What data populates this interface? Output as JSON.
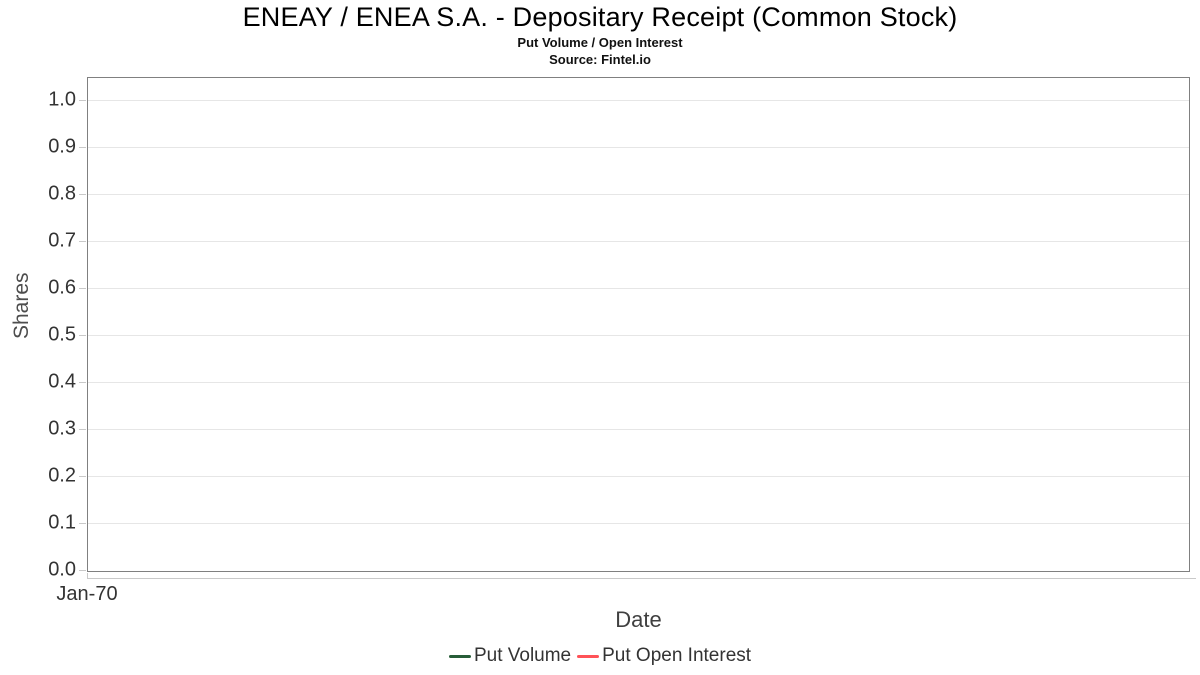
{
  "chart": {
    "title": "ENEAY / ENEA S.A. - Depositary Receipt (Common Stock)",
    "subtitle": "Put Volume / Open Interest",
    "source": "Source: Fintel.io",
    "ylabel": "Shares",
    "xlabel": "Date",
    "y_ticks": [
      "1.0",
      "0.9",
      "0.8",
      "0.7",
      "0.6",
      "0.5",
      "0.4",
      "0.3",
      "0.2",
      "0.1",
      "0.0"
    ],
    "x_ticks": [
      "Jan-70"
    ],
    "legend": [
      {
        "label": "Put Volume",
        "color": "#275d38"
      },
      {
        "label": "Put Open Interest",
        "color": "#ff5257"
      }
    ],
    "colors": {
      "plot_border": "#808080",
      "gridline": "#e6e6e6",
      "tick": "#c9c9c9",
      "title_text": "#000000",
      "tick_label_text": "#333333",
      "axis_title_text": "#404040"
    }
  },
  "chart_data": {
    "type": "line",
    "title": "ENEAY / ENEA S.A. - Depositary Receipt (Common Stock)",
    "subtitle": "Put Volume / Open Interest",
    "source": "Source: Fintel.io",
    "xlabel": "Date",
    "ylabel": "Shares",
    "x": [
      "Jan-70"
    ],
    "series": [
      {
        "name": "Put Volume",
        "color": "#275d38",
        "values": []
      },
      {
        "name": "Put Open Interest",
        "color": "#ff5257",
        "values": []
      }
    ],
    "ylim": [
      0.0,
      1.0
    ],
    "y_tick_step": 0.1,
    "grid": true,
    "legend_position": "bottom"
  }
}
